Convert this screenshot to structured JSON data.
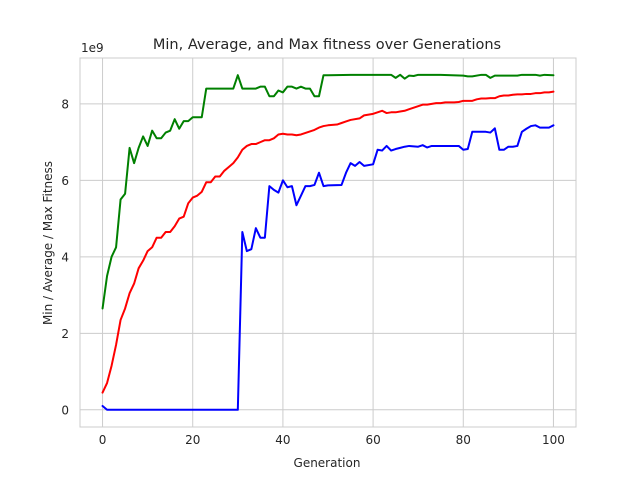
{
  "chart_data": {
    "type": "line",
    "title": "Min, Average, and Max fitness over Generations",
    "xlabel": "Generation",
    "ylabel": "Min / Average / Max Fitness",
    "y_offset_label": "1e9",
    "xlim": [
      -5,
      105
    ],
    "ylim": [
      -0.45,
      9.2
    ],
    "x_ticks": [
      0,
      20,
      40,
      60,
      80,
      100
    ],
    "y_ticks": [
      0,
      2,
      4,
      6,
      8
    ],
    "grid": true,
    "legend": "none",
    "series": [
      {
        "color": "#008000",
        "points": [
          [
            0,
            2.65
          ],
          [
            1,
            3.5
          ],
          [
            2,
            4.0
          ],
          [
            3,
            4.25
          ],
          [
            4,
            5.5
          ],
          [
            5,
            5.65
          ],
          [
            6,
            6.85
          ],
          [
            7,
            6.45
          ],
          [
            8,
            6.85
          ],
          [
            9,
            7.15
          ],
          [
            10,
            6.9
          ],
          [
            11,
            7.3
          ],
          [
            12,
            7.1
          ],
          [
            13,
            7.1
          ],
          [
            14,
            7.25
          ],
          [
            15,
            7.3
          ],
          [
            16,
            7.6
          ],
          [
            17,
            7.35
          ],
          [
            18,
            7.55
          ],
          [
            19,
            7.55
          ],
          [
            20,
            7.65
          ],
          [
            21,
            7.65
          ],
          [
            22,
            7.65
          ],
          [
            23,
            8.4
          ],
          [
            24,
            8.4
          ],
          [
            25,
            8.4
          ],
          [
            26,
            8.4
          ],
          [
            27,
            8.4
          ],
          [
            28,
            8.4
          ],
          [
            29,
            8.4
          ],
          [
            30,
            8.75
          ],
          [
            31,
            8.4
          ],
          [
            32,
            8.4
          ],
          [
            33,
            8.4
          ],
          [
            34,
            8.4
          ],
          [
            35,
            8.45
          ],
          [
            36,
            8.45
          ],
          [
            37,
            8.2
          ],
          [
            38,
            8.2
          ],
          [
            39,
            8.35
          ],
          [
            40,
            8.3
          ],
          [
            41,
            8.45
          ],
          [
            42,
            8.45
          ],
          [
            43,
            8.4
          ],
          [
            44,
            8.45
          ],
          [
            45,
            8.4
          ],
          [
            46,
            8.4
          ],
          [
            47,
            8.2
          ],
          [
            48,
            8.2
          ],
          [
            49,
            8.75
          ],
          [
            50,
            8.75
          ],
          [
            55,
            8.76
          ],
          [
            60,
            8.76
          ],
          [
            64,
            8.76
          ],
          [
            65,
            8.68
          ],
          [
            66,
            8.76
          ],
          [
            67,
            8.66
          ],
          [
            68,
            8.74
          ],
          [
            69,
            8.73
          ],
          [
            70,
            8.76
          ],
          [
            75,
            8.76
          ],
          [
            80,
            8.74
          ],
          [
            81,
            8.72
          ],
          [
            82,
            8.72
          ],
          [
            84,
            8.76
          ],
          [
            85,
            8.76
          ],
          [
            86,
            8.68
          ],
          [
            87,
            8.74
          ],
          [
            88,
            8.74
          ],
          [
            92,
            8.74
          ],
          [
            93,
            8.76
          ],
          [
            96,
            8.76
          ],
          [
            97,
            8.74
          ],
          [
            98,
            8.76
          ],
          [
            100,
            8.75
          ]
        ]
      },
      {
        "color": "#ff0000",
        "points": [
          [
            0,
            0.45
          ],
          [
            1,
            0.7
          ],
          [
            2,
            1.15
          ],
          [
            3,
            1.7
          ],
          [
            4,
            2.35
          ],
          [
            5,
            2.65
          ],
          [
            6,
            3.05
          ],
          [
            7,
            3.3
          ],
          [
            8,
            3.7
          ],
          [
            9,
            3.9
          ],
          [
            10,
            4.15
          ],
          [
            11,
            4.25
          ],
          [
            12,
            4.5
          ],
          [
            13,
            4.5
          ],
          [
            14,
            4.65
          ],
          [
            15,
            4.65
          ],
          [
            16,
            4.8
          ],
          [
            17,
            5.0
          ],
          [
            18,
            5.05
          ],
          [
            19,
            5.4
          ],
          [
            20,
            5.55
          ],
          [
            21,
            5.6
          ],
          [
            22,
            5.7
          ],
          [
            23,
            5.95
          ],
          [
            24,
            5.95
          ],
          [
            25,
            6.1
          ],
          [
            26,
            6.1
          ],
          [
            27,
            6.25
          ],
          [
            28,
            6.35
          ],
          [
            29,
            6.45
          ],
          [
            30,
            6.6
          ],
          [
            31,
            6.8
          ],
          [
            32,
            6.9
          ],
          [
            33,
            6.95
          ],
          [
            34,
            6.95
          ],
          [
            35,
            7.0
          ],
          [
            36,
            7.05
          ],
          [
            37,
            7.05
          ],
          [
            38,
            7.1
          ],
          [
            39,
            7.2
          ],
          [
            40,
            7.22
          ],
          [
            41,
            7.2
          ],
          [
            42,
            7.2
          ],
          [
            43,
            7.18
          ],
          [
            44,
            7.2
          ],
          [
            45,
            7.24
          ],
          [
            46,
            7.28
          ],
          [
            47,
            7.32
          ],
          [
            48,
            7.38
          ],
          [
            49,
            7.42
          ],
          [
            50,
            7.44
          ],
          [
            52,
            7.46
          ],
          [
            53,
            7.5
          ],
          [
            54,
            7.54
          ],
          [
            55,
            7.58
          ],
          [
            57,
            7.62
          ],
          [
            58,
            7.7
          ],
          [
            59,
            7.72
          ],
          [
            60,
            7.74
          ],
          [
            61,
            7.78
          ],
          [
            62,
            7.82
          ],
          [
            63,
            7.76
          ],
          [
            64,
            7.78
          ],
          [
            65,
            7.78
          ],
          [
            66,
            7.8
          ],
          [
            67,
            7.82
          ],
          [
            68,
            7.86
          ],
          [
            69,
            7.9
          ],
          [
            70,
            7.94
          ],
          [
            71,
            7.98
          ],
          [
            72,
            7.98
          ],
          [
            73,
            8.0
          ],
          [
            74,
            8.02
          ],
          [
            75,
            8.02
          ],
          [
            76,
            8.04
          ],
          [
            77,
            8.04
          ],
          [
            78,
            8.04
          ],
          [
            79,
            8.05
          ],
          [
            80,
            8.08
          ],
          [
            81,
            8.08
          ],
          [
            82,
            8.08
          ],
          [
            83,
            8.12
          ],
          [
            84,
            8.14
          ],
          [
            85,
            8.14
          ],
          [
            86,
            8.15
          ],
          [
            87,
            8.15
          ],
          [
            88,
            8.2
          ],
          [
            89,
            8.22
          ],
          [
            90,
            8.22
          ],
          [
            91,
            8.24
          ],
          [
            92,
            8.25
          ],
          [
            93,
            8.25
          ],
          [
            94,
            8.26
          ],
          [
            95,
            8.26
          ],
          [
            96,
            8.28
          ],
          [
            97,
            8.28
          ],
          [
            98,
            8.3
          ],
          [
            99,
            8.3
          ],
          [
            100,
            8.32
          ]
        ]
      },
      {
        "color": "#0000ff",
        "points": [
          [
            0,
            0.1
          ],
          [
            1,
            0.0
          ],
          [
            30,
            0.0
          ],
          [
            31,
            4.65
          ],
          [
            32,
            4.15
          ],
          [
            33,
            4.2
          ],
          [
            34,
            4.75
          ],
          [
            35,
            4.5
          ],
          [
            36,
            4.5
          ],
          [
            37,
            5.85
          ],
          [
            38,
            5.75
          ],
          [
            39,
            5.68
          ],
          [
            40,
            6.0
          ],
          [
            41,
            5.82
          ],
          [
            42,
            5.85
          ],
          [
            43,
            5.35
          ],
          [
            44,
            5.6
          ],
          [
            45,
            5.85
          ],
          [
            46,
            5.85
          ],
          [
            47,
            5.88
          ],
          [
            48,
            6.2
          ],
          [
            49,
            5.85
          ],
          [
            50,
            5.87
          ],
          [
            53,
            5.88
          ],
          [
            54,
            6.2
          ],
          [
            55,
            6.45
          ],
          [
            56,
            6.38
          ],
          [
            57,
            6.48
          ],
          [
            58,
            6.38
          ],
          [
            60,
            6.42
          ],
          [
            61,
            6.8
          ],
          [
            62,
            6.78
          ],
          [
            63,
            6.9
          ],
          [
            64,
            6.78
          ],
          [
            65,
            6.82
          ],
          [
            66,
            6.85
          ],
          [
            67,
            6.88
          ],
          [
            68,
            6.9
          ],
          [
            70,
            6.88
          ],
          [
            71,
            6.92
          ],
          [
            72,
            6.86
          ],
          [
            73,
            6.9
          ],
          [
            74,
            6.9
          ],
          [
            76,
            6.9
          ],
          [
            78,
            6.9
          ],
          [
            79,
            6.9
          ],
          [
            80,
            6.8
          ],
          [
            81,
            6.82
          ],
          [
            82,
            7.27
          ],
          [
            83,
            7.27
          ],
          [
            84,
            7.27
          ],
          [
            85,
            7.27
          ],
          [
            86,
            7.25
          ],
          [
            87,
            7.36
          ],
          [
            88,
            6.8
          ],
          [
            89,
            6.8
          ],
          [
            90,
            6.88
          ],
          [
            91,
            6.88
          ],
          [
            92,
            6.9
          ],
          [
            93,
            7.27
          ],
          [
            94,
            7.35
          ],
          [
            95,
            7.42
          ],
          [
            96,
            7.44
          ],
          [
            97,
            7.38
          ],
          [
            98,
            7.38
          ],
          [
            99,
            7.38
          ],
          [
            100,
            7.44
          ]
        ]
      }
    ]
  }
}
